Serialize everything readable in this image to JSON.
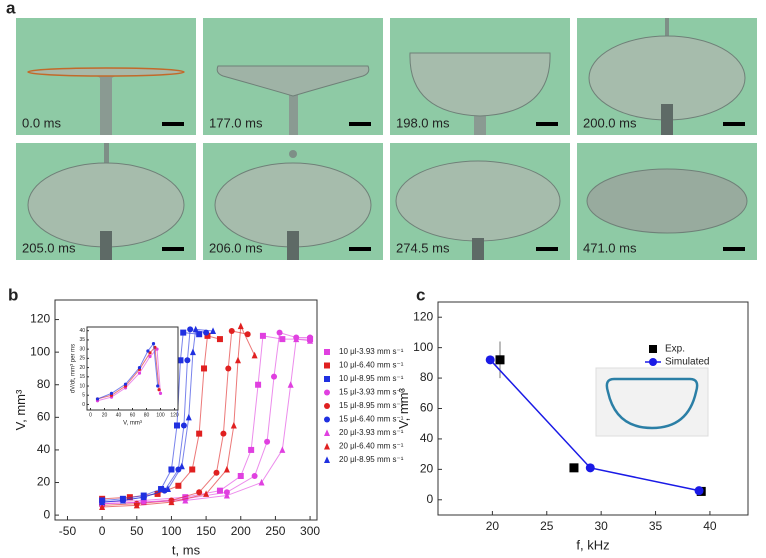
{
  "panel_labels": [
    "a",
    "b",
    "c"
  ],
  "frames": [
    "0.0 ms",
    "177.0 ms",
    "198.0 ms",
    "200.0 ms",
    "205.0 ms",
    "206.0 ms",
    "274.5 ms",
    "471.0 ms"
  ],
  "chart_data": [
    {
      "type": "scatter",
      "xlabel": "t, ms",
      "ylabel": "V, mm³",
      "xlim": [
        -68,
        310
      ],
      "ylim": [
        -3,
        132
      ],
      "xticks": [
        -50,
        0,
        50,
        100,
        150,
        200,
        250,
        300
      ],
      "yticks": [
        0,
        20,
        40,
        60,
        80,
        100,
        120
      ],
      "legend": "right",
      "series": [
        {
          "name": "10 μl-3.93 mm s⁻¹",
          "color": "#e040e0",
          "marker": "square",
          "x": [
            0,
            60,
            120,
            170,
            200,
            215,
            225,
            232,
            260,
            300
          ],
          "values": [
            8,
            9,
            11,
            15,
            24,
            40,
            80,
            110,
            108,
            108
          ]
        },
        {
          "name": "10 μl-6.40 mm s⁻¹",
          "color": "#e02020",
          "marker": "square",
          "x": [
            0,
            40,
            80,
            110,
            130,
            140,
            147,
            152,
            170
          ],
          "values": [
            10,
            11,
            13,
            18,
            28,
            50,
            90,
            110,
            108
          ]
        },
        {
          "name": "10 μl-8.95 mm s⁻¹",
          "color": "#2030e0",
          "marker": "square",
          "x": [
            0,
            30,
            60,
            85,
            100,
            108,
            113,
            117,
            140
          ],
          "values": [
            9,
            10,
            12,
            16,
            28,
            55,
            95,
            112,
            111
          ]
        },
        {
          "name": "15 μl-3.93 mm s⁻¹",
          "color": "#e040e0",
          "marker": "circle",
          "x": [
            0,
            60,
            120,
            180,
            220,
            238,
            248,
            256,
            280,
            300
          ],
          "values": [
            7,
            8,
            10,
            14,
            24,
            45,
            85,
            112,
            109,
            109
          ]
        },
        {
          "name": "15 μl-8.95 mm s⁻¹",
          "color": "#e02020",
          "marker": "circle",
          "x": [
            0,
            50,
            100,
            140,
            165,
            175,
            182,
            187,
            210
          ],
          "values": [
            6,
            7,
            9,
            14,
            26,
            50,
            90,
            113,
            111
          ]
        },
        {
          "name": "15 μl-6.40 mm s⁻¹",
          "color": "#2030e0",
          "marker": "circle",
          "x": [
            0,
            30,
            60,
            90,
            110,
            118,
            123,
            127,
            150
          ],
          "values": [
            8,
            9,
            11,
            15,
            28,
            55,
            95,
            114,
            112
          ]
        },
        {
          "name": "20 μl-3.93 mm s⁻¹",
          "color": "#e040e0",
          "marker": "triangle",
          "x": [
            0,
            60,
            120,
            180,
            230,
            260,
            272,
            280,
            300
          ],
          "values": [
            7,
            8,
            9,
            12,
            20,
            40,
            80,
            108,
            107
          ]
        },
        {
          "name": "20 μl-6.40 mm s⁻¹",
          "color": "#e02020",
          "marker": "triangle",
          "x": [
            0,
            50,
            100,
            150,
            180,
            190,
            196,
            200,
            220
          ],
          "values": [
            5,
            6,
            8,
            13,
            28,
            55,
            95,
            116,
            98
          ]
        },
        {
          "name": "20 μl-8.95 mm s⁻¹",
          "color": "#2030e0",
          "marker": "triangle",
          "x": [
            0,
            30,
            60,
            95,
            115,
            125,
            131,
            135,
            160
          ],
          "values": [
            8,
            9,
            11,
            16,
            30,
            60,
            100,
            114,
            113
          ]
        }
      ]
    },
    {
      "type": "scatter",
      "xlabel": "V, mm³",
      "ylabel": "dV/dt, mm³ per ms",
      "xlim": [
        -5,
        125
      ],
      "ylim": [
        -3,
        42
      ],
      "xticks": [
        0,
        20,
        40,
        60,
        80,
        100,
        120
      ],
      "yticks": [
        0,
        5,
        10,
        15,
        20,
        25,
        30,
        35,
        40
      ],
      "series": [
        {
          "color": "#e040e0",
          "marker": "circle",
          "x": [
            10,
            30,
            50,
            70,
            85,
            95,
            100
          ],
          "values": [
            2,
            4,
            9,
            17,
            26,
            30,
            6
          ]
        },
        {
          "color": "#e02020",
          "marker": "circle",
          "x": [
            10,
            30,
            50,
            70,
            85,
            92,
            98
          ],
          "values": [
            3,
            5,
            10,
            19,
            28,
            31,
            8
          ]
        },
        {
          "color": "#2030e0",
          "marker": "circle",
          "x": [
            10,
            30,
            50,
            70,
            82,
            90,
            96
          ],
          "values": [
            3,
            6,
            11,
            20,
            29,
            33,
            10
          ]
        }
      ]
    },
    {
      "type": "scatter",
      "xlabel": "f, kHz",
      "ylabel": "V, mm³",
      "xlim": [
        15,
        43.5
      ],
      "ylim": [
        -10,
        130
      ],
      "xticks": [
        20,
        25,
        30,
        35,
        40
      ],
      "yticks": [
        0,
        20,
        40,
        60,
        80,
        100,
        120
      ],
      "legend": "upper right",
      "series": [
        {
          "name": "Exp.",
          "color": "#000000",
          "marker": "square",
          "line": false,
          "x": [
            20.7,
            27.5,
            39.2
          ],
          "values": [
            92,
            21,
            5.5
          ],
          "errors": [
            12,
            null,
            null
          ]
        },
        {
          "name": "Simulated",
          "color": "#1a1ae6",
          "marker": "circle",
          "line": true,
          "x": [
            19.8,
            29,
            39
          ],
          "values": [
            92,
            21,
            6
          ]
        }
      ]
    }
  ]
}
